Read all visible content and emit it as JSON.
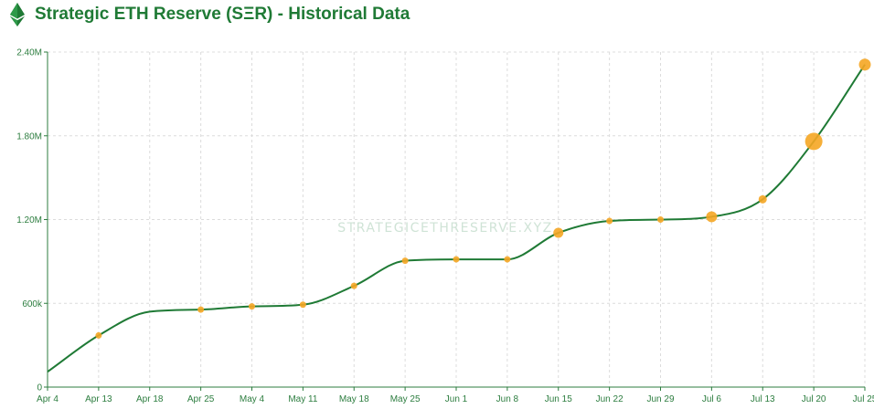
{
  "header": {
    "title": "Strategic ETH Reserve (SΞR) - Historical Data",
    "logo_icon": "ethereum-diamond-icon"
  },
  "watermark": "STRATEGICETHRESERVE.XYZ",
  "colors": {
    "line": "#1f7a35",
    "point": "#f5a623",
    "axis": "#2c7d3f",
    "grid": "#dcdcdc",
    "title": "#1f7a35"
  },
  "chart_data": {
    "type": "line",
    "title": "Strategic ETH Reserve (SΞR) - Historical Data",
    "xlabel": "",
    "ylabel": "",
    "x_tick_labels": [
      "Apr 4",
      "Apr 13",
      "Apr 18",
      "Apr 25",
      "May 4",
      "May 11",
      "May 18",
      "May 25",
      "Jun 1",
      "Jun 8",
      "Jun 15",
      "Jun 22",
      "Jun 29",
      "Jul 6",
      "Jul 13",
      "Jul 20",
      "Jul 25"
    ],
    "y_tick_labels": [
      "0",
      "600k",
      "1.20M",
      "1.80M",
      "2.40M"
    ],
    "y_ticks": [
      0,
      600000,
      1200000,
      1800000,
      2400000
    ],
    "ylim": [
      0,
      2400000
    ],
    "grid": true,
    "series": [
      {
        "x": [
          "Apr 4",
          "Apr 13",
          "Apr 18",
          "Apr 25",
          "May 4",
          "May 11",
          "May 18",
          "May 25",
          "Jun 1",
          "Jun 8",
          "Jun 15",
          "Jun 22",
          "Jun 29",
          "Jul 6",
          "Jul 13",
          "Jul 20",
          "Jul 25"
        ],
        "values": [
          110000,
          370000,
          540000,
          555000,
          578000,
          590000,
          725000,
          905000,
          915000,
          915000,
          1105000,
          1190000,
          1200000,
          1220000,
          1345000,
          1760000,
          2310000
        ],
        "marker_size": [
          0,
          3.5,
          0,
          3.5,
          3.5,
          3.5,
          3.5,
          3.5,
          3.5,
          3.5,
          5.5,
          3.5,
          3.5,
          6,
          4.5,
          9.5,
          6.5
        ]
      }
    ]
  }
}
